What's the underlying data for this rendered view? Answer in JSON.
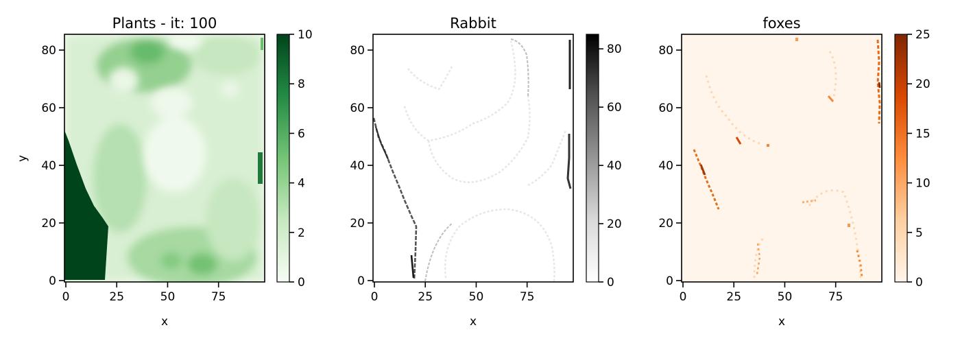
{
  "chart_data": [
    {
      "type": "heatmap",
      "title": "Plants - it: 100",
      "xlabel": "x",
      "ylabel": "y",
      "xlim": [
        0,
        97
      ],
      "ylim": [
        0,
        85
      ],
      "xticks": [
        "0",
        "25",
        "50",
        "75"
      ],
      "yticks": [
        "0",
        "20",
        "40",
        "60",
        "80"
      ],
      "colormap": "Greens",
      "colorbar": {
        "min": 0,
        "max": 10,
        "ticks": [
          "0",
          "2",
          "4",
          "6",
          "8",
          "10"
        ]
      },
      "colors": {
        "low": "#f7fcf5",
        "mid": "#74c476",
        "high": "#00441b"
      }
    },
    {
      "type": "heatmap",
      "title": "Rabbit",
      "xlabel": "x",
      "ylabel": "",
      "xlim": [
        0,
        97
      ],
      "ylim": [
        0,
        85
      ],
      "xticks": [
        "0",
        "25",
        "50",
        "75"
      ],
      "yticks": [
        "0",
        "20",
        "40",
        "60",
        "80"
      ],
      "colormap": "Greys",
      "colorbar": {
        "min": 0,
        "max": 85,
        "ticks": [
          "0",
          "20",
          "40",
          "60",
          "80"
        ]
      },
      "colors": {
        "low": "#ffffff",
        "mid": "#969696",
        "high": "#000000"
      }
    },
    {
      "type": "heatmap",
      "title": "foxes",
      "xlabel": "x",
      "ylabel": "",
      "xlim": [
        0,
        97
      ],
      "ylim": [
        0,
        85
      ],
      "xticks": [
        "0",
        "25",
        "50",
        "75"
      ],
      "yticks": [
        "0",
        "20",
        "40",
        "60",
        "80"
      ],
      "colormap": "Oranges",
      "colorbar": {
        "min": 0,
        "max": 25,
        "ticks": [
          "0",
          "5",
          "10",
          "15",
          "20",
          "25"
        ]
      },
      "colors": {
        "low": "#fff5eb",
        "mid": "#fd8d3c",
        "high": "#7f2704"
      }
    }
  ]
}
